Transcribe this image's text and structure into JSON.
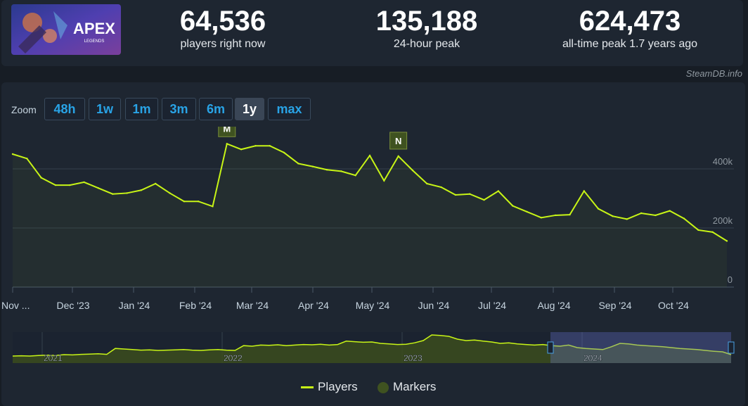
{
  "stats": [
    {
      "value": "64,536",
      "label": "players right now"
    },
    {
      "value": "135,188",
      "label": "24-hour peak"
    },
    {
      "value": "624,473",
      "label": "all-time peak 1.7 years ago"
    }
  ],
  "game_logo_text": "APEX",
  "game_logo_subtext": "LEGENDS",
  "watermark": "SteamDB.info",
  "zoom": {
    "label": "Zoom",
    "buttons": [
      "48h",
      "1w",
      "1m",
      "3m",
      "6m",
      "1y",
      "max"
    ],
    "active": "1y"
  },
  "legend": {
    "players": "Players",
    "markers": "Markers"
  },
  "colors": {
    "series": "#c8f516",
    "marker_bg": "#3f5220",
    "accent": "#29a3e6"
  },
  "chart_data": [
    {
      "type": "line",
      "x": [
        "Nov '23 start",
        "Nov '23",
        "Nov '23",
        "Nov '23",
        "Nov '23",
        "Dec '23",
        "Dec '23",
        "Dec '23",
        "Dec '23",
        "Jan '24",
        "Jan '24",
        "Jan '24",
        "Jan '24",
        "Feb '24",
        "Feb '24",
        "Feb '24",
        "Feb '24",
        "Feb '24",
        "Mar '24",
        "Mar '24",
        "Mar '24",
        "Mar '24",
        "Apr '24",
        "Apr '24",
        "Apr '24",
        "Apr '24",
        "May '24",
        "May '24",
        "May '24",
        "May '24",
        "Jun '24",
        "Jun '24",
        "Jun '24",
        "Jun '24",
        "Jul '24",
        "Jul '24",
        "Jul '24",
        "Jul '24",
        "Aug '24",
        "Aug '24",
        "Aug '24",
        "Aug '24",
        "Sep '24",
        "Sep '24",
        "Sep '24",
        "Sep '24",
        "Oct '24",
        "Oct '24",
        "Oct '24",
        "Oct '24",
        "Oct '24"
      ],
      "values": [
        450000,
        435000,
        370000,
        345000,
        345000,
        355000,
        335000,
        315000,
        318000,
        328000,
        350000,
        318000,
        290000,
        290000,
        273000,
        485000,
        466000,
        478000,
        478000,
        455000,
        418000,
        408000,
        397000,
        392000,
        378000,
        445000,
        360000,
        443000,
        395000,
        350000,
        338000,
        312000,
        315000,
        295000,
        325000,
        275000,
        255000,
        235000,
        243000,
        245000,
        325000,
        265000,
        240000,
        230000,
        250000,
        243000,
        258000,
        232000,
        193000,
        186000,
        156000
      ],
      "markers": [
        {
          "label": "M",
          "x": "Feb '24"
        },
        {
          "label": "N",
          "x": "May '24"
        }
      ],
      "xticks": [
        "Nov ...",
        "Dec '23",
        "Jan '24",
        "Feb '24",
        "Mar '24",
        "Apr '24",
        "May '24",
        "Jun '24",
        "Jul '24",
        "Aug '24",
        "Sep '24",
        "Oct '24"
      ],
      "yticks": [
        "0",
        "200k",
        "400k"
      ],
      "ylim": [
        0,
        500000
      ],
      "series": [
        {
          "name": "Players"
        }
      ],
      "grid": true
    },
    {
      "type": "area",
      "role": "navigator",
      "xticks": [
        "2021",
        "2022",
        "2023",
        "2024"
      ],
      "values": [
        25,
        26,
        25,
        27,
        28,
        27,
        30,
        29,
        31,
        32,
        33,
        31,
        52,
        50,
        48,
        46,
        47,
        45,
        46,
        47,
        48,
        46,
        45,
        47,
        48,
        46,
        45,
        62,
        60,
        64,
        63,
        65,
        62,
        64,
        66,
        65,
        67,
        64,
        66,
        78,
        76,
        74,
        75,
        70,
        68,
        66,
        67,
        72,
        80,
        100,
        98,
        95,
        85,
        80,
        82,
        78,
        75,
        70,
        72,
        68,
        66,
        64,
        66,
        62,
        60,
        64,
        55,
        52,
        50,
        48,
        58,
        70,
        68,
        64,
        62,
        60,
        58,
        55,
        52,
        50,
        48,
        45,
        42,
        40,
        30
      ]
    }
  ]
}
